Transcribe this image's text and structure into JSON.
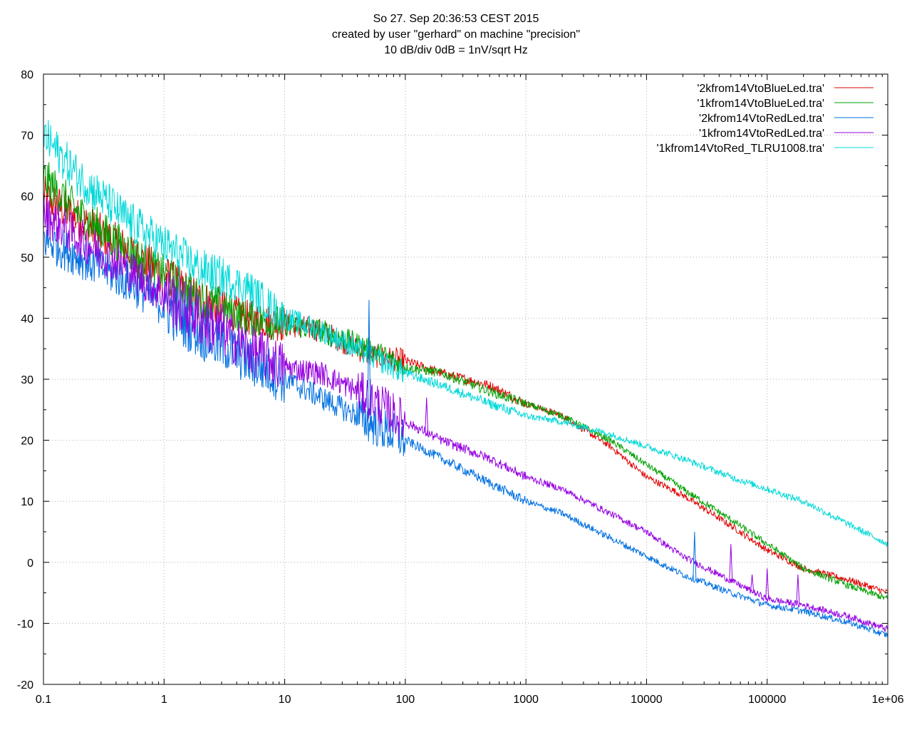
{
  "chart_data": {
    "type": "line",
    "title_lines": [
      "So 27. Sep 20:36:53 CEST 2015",
      "created by user \"gerhard\" on machine \"precision\"",
      "10 dB/div   0dB = 1nV/sqrt Hz"
    ],
    "x_scale": "log",
    "xlim": [
      0.1,
      1000000
    ],
    "ylim": [
      -20,
      80
    ],
    "grid": true,
    "legend_position": "top-right",
    "x_ticks": [
      {
        "value": 0.1,
        "label": "0.1"
      },
      {
        "value": 1,
        "label": "1"
      },
      {
        "value": 10,
        "label": "10"
      },
      {
        "value": 100,
        "label": "100"
      },
      {
        "value": 1000,
        "label": "1000"
      },
      {
        "value": 10000,
        "label": "10000"
      },
      {
        "value": 100000,
        "label": "100000"
      },
      {
        "value": 1000000,
        "label": "1e+06"
      }
    ],
    "y_ticks": [
      {
        "value": 80,
        "label": "80"
      },
      {
        "value": 70,
        "label": "70"
      },
      {
        "value": 60,
        "label": "60"
      },
      {
        "value": 50,
        "label": "50"
      },
      {
        "value": 40,
        "label": "40"
      },
      {
        "value": 30,
        "label": "30"
      },
      {
        "value": 20,
        "label": "20"
      },
      {
        "value": 10,
        "label": "10"
      },
      {
        "value": 0,
        "label": "0"
      },
      {
        "value": -10,
        "label": "-10"
      },
      {
        "value": -20,
        "label": "-20"
      }
    ],
    "series": [
      {
        "name": "'2kfrom14VtoBlueLed.tra'",
        "color": "#e00000",
        "x": [
          0.1,
          0.2,
          0.5,
          1,
          2,
          5,
          10,
          20,
          50,
          100,
          200,
          500,
          1000,
          2000,
          5000,
          10000,
          20000,
          50000,
          100000,
          200000,
          500000,
          1000000
        ],
        "y": [
          60,
          56,
          51,
          47,
          43,
          40,
          39,
          38,
          34,
          33,
          31,
          29,
          26,
          24,
          19,
          14,
          11,
          6,
          2,
          -1,
          -3,
          -5
        ]
      },
      {
        "name": "'1kfrom14VtoBlueLed.tra'",
        "color": "#00a000",
        "x": [
          0.1,
          0.2,
          0.5,
          1,
          2,
          5,
          10,
          20,
          50,
          100,
          200,
          500,
          1000,
          2000,
          5000,
          10000,
          20000,
          50000,
          100000,
          200000,
          500000,
          1000000
        ],
        "y": [
          63,
          57,
          51,
          47,
          43,
          40,
          39,
          38,
          35,
          32,
          31,
          28,
          26,
          24,
          20,
          16,
          12,
          7,
          3,
          -1,
          -4,
          -6
        ]
      },
      {
        "name": "'2kfrom14VtoRedLed.tra'",
        "color": "#0070e0",
        "x": [
          0.1,
          0.2,
          0.5,
          1,
          2,
          5,
          10,
          20,
          50,
          100,
          200,
          500,
          1000,
          2000,
          5000,
          10000,
          20000,
          50000,
          100000,
          200000,
          500000,
          1000000
        ],
        "y": [
          53,
          50,
          46,
          42,
          38,
          33,
          30,
          27,
          23,
          20,
          17,
          13,
          10,
          8,
          4,
          1,
          -2,
          -5,
          -7,
          -8,
          -10,
          -12
        ]
      },
      {
        "name": "'1kfrom14VtoRedLed.tra'",
        "color": "#9500e0",
        "x": [
          0.1,
          0.2,
          0.5,
          1,
          2,
          5,
          10,
          20,
          50,
          100,
          200,
          500,
          1000,
          2000,
          5000,
          10000,
          20000,
          50000,
          100000,
          200000,
          500000,
          1000000
        ],
        "y": [
          57,
          53,
          48,
          44,
          40,
          35,
          32,
          31,
          27,
          23,
          20,
          17,
          14,
          12,
          8,
          5,
          1,
          -3,
          -6,
          -7,
          -9,
          -11
        ]
      },
      {
        "name": "'1kfrom14VtoRed_TLRU1008.tra'",
        "color": "#00d8d8",
        "x": [
          0.1,
          0.2,
          0.5,
          1,
          2,
          5,
          10,
          20,
          50,
          100,
          200,
          500,
          1000,
          2000,
          5000,
          10000,
          20000,
          50000,
          100000,
          200000,
          500000,
          1000000
        ],
        "y": [
          70,
          63,
          56,
          52,
          48,
          45,
          40,
          38,
          34,
          31,
          29,
          26,
          24,
          23,
          21,
          19,
          17,
          14,
          12,
          10,
          6,
          3
        ]
      }
    ],
    "spikes": [
      {
        "series": 2,
        "x": 50,
        "y": 43
      },
      {
        "series": 3,
        "x": 150,
        "y": 27
      },
      {
        "series": 2,
        "x": 25000,
        "y": 5
      },
      {
        "series": 3,
        "x": 50000,
        "y": 3
      },
      {
        "series": 3,
        "x": 75000,
        "y": -2
      },
      {
        "series": 3,
        "x": 100000,
        "y": -1
      },
      {
        "series": 3,
        "x": 180000,
        "y": -2
      }
    ]
  }
}
